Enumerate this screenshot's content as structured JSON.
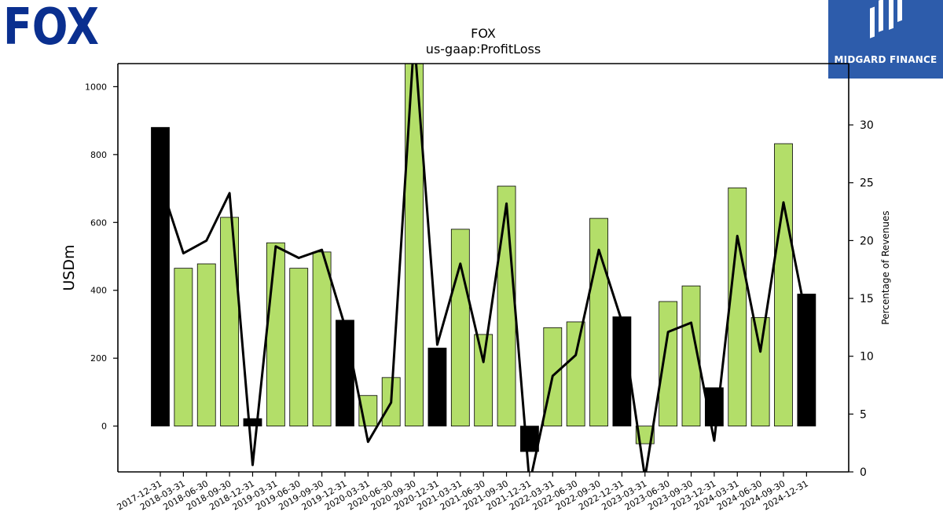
{
  "logos": {
    "left_text": "FOX",
    "right_text": "MIDGARD FINANCE",
    "right_bg": "#2d5cab"
  },
  "chart_data": {
    "type": "bar",
    "title": "FOX",
    "subtitle": "us-gaap:ProfitLoss",
    "ylabel": "USDm",
    "ylabel_right": "Percentage of Revenues",
    "ylim": [
      -135,
      1068
    ],
    "ylim_right": [
      0,
      35.3
    ],
    "yticks": [
      0,
      200,
      400,
      600,
      800,
      1000
    ],
    "yticks_right": [
      0,
      5,
      10,
      15,
      20,
      25,
      30
    ],
    "colors": {
      "annual": "#000000",
      "quarter": "#b3de69",
      "line": "#000000"
    },
    "categories": [
      "2017-12-31",
      "2018-03-31",
      "2018-06-30",
      "2018-09-30",
      "2018-12-31",
      "2019-03-31",
      "2019-06-30",
      "2019-09-30",
      "2019-12-31",
      "2020-03-31",
      "2020-06-30",
      "2020-09-30",
      "2020-12-31",
      "2021-03-31",
      "2021-06-30",
      "2021-09-30",
      "2021-12-31",
      "2022-03-31",
      "2022-06-30",
      "2022-09-30",
      "2022-12-31",
      "2023-03-31",
      "2023-06-30",
      "2023-09-30",
      "2023-12-31",
      "2024-03-31",
      "2024-06-30",
      "2024-09-30",
      "2024-12-31"
    ],
    "series": [
      {
        "type": "bar",
        "values": [
          880,
          465,
          478,
          615,
          22,
          540,
          465,
          513,
          312,
          90,
          143,
          1080,
          230,
          580,
          270,
          707,
          -75,
          290,
          307,
          612,
          322,
          -52,
          367,
          413,
          113,
          702,
          320,
          832,
          389
        ],
        "highlight": [
          true,
          false,
          false,
          false,
          true,
          false,
          false,
          false,
          true,
          false,
          false,
          false,
          true,
          false,
          false,
          false,
          true,
          false,
          false,
          false,
          true,
          false,
          false,
          false,
          true,
          false,
          false,
          false,
          true
        ]
      },
      {
        "type": "line",
        "axis": "right",
        "values": [
          25.0,
          18.9,
          20.0,
          24.1,
          0.6,
          19.5,
          18.5,
          19.2,
          12.6,
          2.6,
          6.0,
          37.5,
          11.0,
          18.0,
          9.5,
          23.2,
          -1.0,
          8.3,
          10.1,
          19.2,
          13.0,
          -0.5,
          12.1,
          12.9,
          2.7,
          20.4,
          10.4,
          23.3,
          13.2
        ]
      }
    ]
  }
}
